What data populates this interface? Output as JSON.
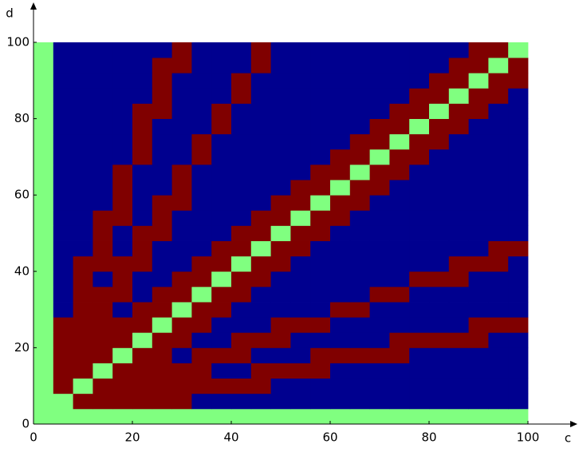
{
  "chart_data": {
    "type": "heatmap",
    "x_label": "c",
    "y_label": "d",
    "xlim": [
      0,
      100
    ],
    "ylim": [
      0,
      100
    ],
    "xticks": [
      0,
      20,
      40,
      60,
      80,
      100
    ],
    "yticks": [
      0,
      20,
      40,
      60,
      80,
      100
    ],
    "colors": [
      "#00008f",
      "#80ff80",
      "#800000"
    ],
    "z": [
      [
        1,
        1,
        1,
        1,
        1,
        1,
        1,
        1,
        1,
        1,
        1,
        1,
        1,
        1,
        1,
        1,
        1,
        1,
        1,
        1,
        1,
        1,
        1,
        1,
        1
      ],
      [
        1,
        1,
        2,
        2,
        2,
        2,
        2,
        2,
        0,
        0,
        0,
        0,
        0,
        0,
        0,
        0,
        0,
        0,
        0,
        0,
        0,
        0,
        0,
        0,
        0
      ],
      [
        1,
        2,
        1,
        2,
        2,
        2,
        2,
        2,
        2,
        2,
        2,
        2,
        0,
        0,
        0,
        0,
        0,
        0,
        0,
        0,
        0,
        0,
        0,
        0,
        0
      ],
      [
        1,
        2,
        2,
        1,
        2,
        2,
        2,
        2,
        2,
        0,
        0,
        2,
        2,
        2,
        2,
        0,
        0,
        0,
        0,
        0,
        0,
        0,
        0,
        0,
        0
      ],
      [
        1,
        2,
        2,
        2,
        1,
        2,
        2,
        0,
        2,
        2,
        2,
        0,
        0,
        0,
        2,
        2,
        2,
        2,
        2,
        0,
        0,
        0,
        0,
        0,
        0
      ],
      [
        1,
        2,
        2,
        2,
        2,
        1,
        2,
        2,
        0,
        0,
        2,
        2,
        2,
        0,
        0,
        0,
        0,
        0,
        2,
        2,
        2,
        2,
        2,
        0,
        0
      ],
      [
        1,
        2,
        2,
        2,
        2,
        2,
        1,
        2,
        2,
        0,
        0,
        0,
        2,
        2,
        2,
        0,
        0,
        0,
        0,
        0,
        0,
        0,
        2,
        2,
        2
      ],
      [
        1,
        0,
        2,
        2,
        0,
        2,
        2,
        1,
        2,
        2,
        0,
        0,
        0,
        0,
        0,
        2,
        2,
        0,
        0,
        0,
        0,
        0,
        0,
        0,
        0
      ],
      [
        1,
        0,
        2,
        2,
        2,
        0,
        2,
        2,
        1,
        2,
        2,
        0,
        0,
        0,
        0,
        0,
        0,
        2,
        2,
        0,
        0,
        0,
        0,
        0,
        0
      ],
      [
        1,
        0,
        2,
        0,
        2,
        0,
        0,
        2,
        2,
        1,
        2,
        2,
        0,
        0,
        0,
        0,
        0,
        0,
        0,
        2,
        2,
        2,
        0,
        0,
        0
      ],
      [
        1,
        0,
        2,
        2,
        2,
        2,
        0,
        0,
        2,
        2,
        1,
        2,
        2,
        0,
        0,
        0,
        0,
        0,
        0,
        0,
        0,
        2,
        2,
        2,
        0
      ],
      [
        1,
        0,
        0,
        2,
        0,
        2,
        0,
        0,
        0,
        2,
        2,
        1,
        2,
        2,
        0,
        0,
        0,
        0,
        0,
        0,
        0,
        0,
        0,
        2,
        2
      ],
      [
        1,
        0,
        0,
        2,
        0,
        2,
        2,
        0,
        0,
        0,
        2,
        2,
        1,
        2,
        2,
        0,
        0,
        0,
        0,
        0,
        0,
        0,
        0,
        0,
        0
      ],
      [
        1,
        0,
        0,
        2,
        2,
        0,
        2,
        0,
        0,
        0,
        0,
        2,
        2,
        1,
        2,
        2,
        0,
        0,
        0,
        0,
        0,
        0,
        0,
        0,
        0
      ],
      [
        1,
        0,
        0,
        0,
        2,
        0,
        2,
        2,
        0,
        0,
        0,
        0,
        2,
        2,
        1,
        2,
        2,
        0,
        0,
        0,
        0,
        0,
        0,
        0,
        0
      ],
      [
        1,
        0,
        0,
        0,
        2,
        0,
        0,
        2,
        0,
        0,
        0,
        0,
        0,
        2,
        2,
        1,
        2,
        2,
        0,
        0,
        0,
        0,
        0,
        0,
        0
      ],
      [
        1,
        0,
        0,
        0,
        2,
        0,
        0,
        2,
        0,
        0,
        0,
        0,
        0,
        0,
        2,
        2,
        1,
        2,
        2,
        0,
        0,
        0,
        0,
        0,
        0
      ],
      [
        1,
        0,
        0,
        0,
        0,
        2,
        0,
        0,
        2,
        0,
        0,
        0,
        0,
        0,
        0,
        2,
        2,
        1,
        2,
        2,
        0,
        0,
        0,
        0,
        0
      ],
      [
        1,
        0,
        0,
        0,
        0,
        2,
        0,
        0,
        2,
        0,
        0,
        0,
        0,
        0,
        0,
        0,
        2,
        2,
        1,
        2,
        2,
        0,
        0,
        0,
        0
      ],
      [
        1,
        0,
        0,
        0,
        0,
        2,
        0,
        0,
        0,
        2,
        0,
        0,
        0,
        0,
        0,
        0,
        0,
        2,
        2,
        1,
        2,
        2,
        0,
        0,
        0
      ],
      [
        1,
        0,
        0,
        0,
        0,
        2,
        2,
        0,
        0,
        2,
        0,
        0,
        0,
        0,
        0,
        0,
        0,
        0,
        2,
        2,
        1,
        2,
        2,
        0,
        0
      ],
      [
        1,
        0,
        0,
        0,
        0,
        0,
        2,
        0,
        0,
        0,
        2,
        0,
        0,
        0,
        0,
        0,
        0,
        0,
        0,
        2,
        2,
        1,
        2,
        2,
        0
      ],
      [
        1,
        0,
        0,
        0,
        0,
        0,
        2,
        0,
        0,
        0,
        2,
        0,
        0,
        0,
        0,
        0,
        0,
        0,
        0,
        0,
        2,
        2,
        1,
        2,
        2
      ],
      [
        1,
        0,
        0,
        0,
        0,
        0,
        2,
        2,
        0,
        0,
        0,
        2,
        0,
        0,
        0,
        0,
        0,
        0,
        0,
        0,
        0,
        2,
        2,
        1,
        2
      ],
      [
        1,
        0,
        0,
        0,
        0,
        0,
        0,
        2,
        0,
        0,
        0,
        2,
        0,
        0,
        0,
        0,
        0,
        0,
        0,
        0,
        0,
        0,
        2,
        2,
        1
      ]
    ]
  }
}
